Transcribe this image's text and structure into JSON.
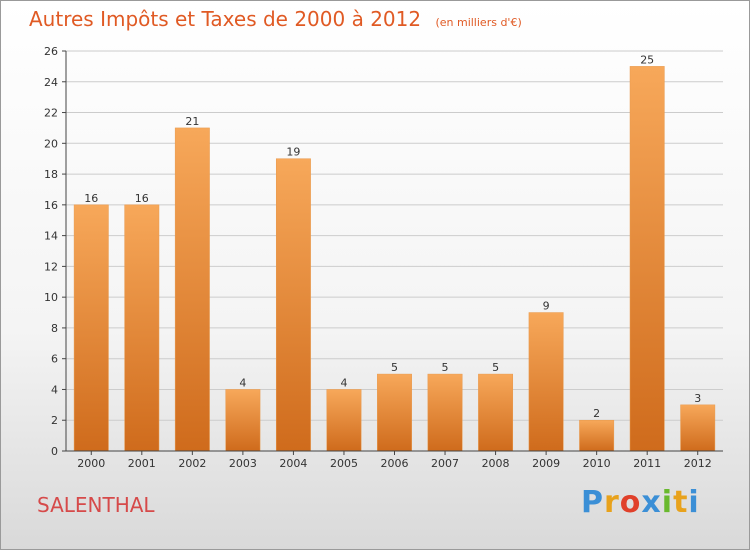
{
  "chart_data": {
    "type": "bar",
    "title": "Autres Impôts et Taxes de 2000 à 2012",
    "subtitle": "(en milliers d'€)",
    "categories": [
      "2000",
      "2001",
      "2002",
      "2003",
      "2004",
      "2005",
      "2006",
      "2007",
      "2008",
      "2009",
      "2010",
      "2011",
      "2012"
    ],
    "values": [
      16,
      16,
      21,
      4,
      19,
      4,
      5,
      5,
      5,
      9,
      2,
      25,
      3
    ],
    "xlabel": "",
    "ylabel": "",
    "ylim": [
      0,
      26
    ],
    "yticks": [
      "0",
      "2",
      "4",
      "6",
      "8",
      "10",
      "12",
      "14",
      "16",
      "18",
      "20",
      "22",
      "24",
      "26"
    ],
    "grid": true,
    "legend": "none",
    "colors": {
      "bar_top": "#f7a85a",
      "bar_bottom": "#cf6b1c",
      "title": "#e05a24",
      "grid": "#cccccc"
    }
  },
  "footer": {
    "commune": "SALENTHAL",
    "logo_letters": [
      "P",
      "r",
      "o",
      "x",
      "i",
      "t",
      "i"
    ],
    "logo_colors": [
      "#3b8fd6",
      "#e8a21c",
      "#e0402a",
      "#3b8fd6",
      "#69b92e",
      "#e8a21c",
      "#3b8fd6"
    ]
  }
}
